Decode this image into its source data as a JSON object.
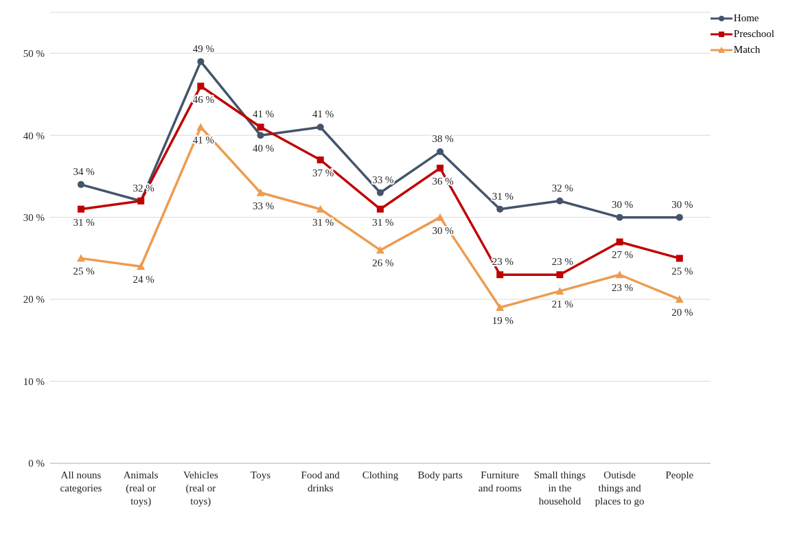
{
  "chart_data": {
    "type": "line",
    "categories": [
      "All nouns categories",
      "Animals (real or toys)",
      "Vehicles (real or toys)",
      "Toys",
      "Food and drinks",
      "Clothing",
      "Body parts",
      "Furniture and rooms",
      "Small things in the household",
      "Outisde things and places to go",
      "People"
    ],
    "series": [
      {
        "name": "Home",
        "color": "#44546a",
        "marker": "circle",
        "values": [
          34,
          32,
          49,
          40,
          41,
          33,
          38,
          31,
          32,
          30,
          30
        ],
        "value_labels": [
          "34 %",
          "32 %",
          "49 %",
          "40 %",
          "41 %",
          "33 %",
          "38 %",
          "31 %",
          "32 %",
          "30 %",
          "30 %"
        ]
      },
      {
        "name": "Preschool",
        "color": "#c00000",
        "marker": "square",
        "values": [
          31,
          32,
          46,
          41,
          37,
          31,
          36,
          23,
          23,
          27,
          25
        ],
        "value_labels": [
          "31 %",
          null,
          "46 %",
          "41 %",
          "37 %",
          "31 %",
          "36 %",
          "23 %",
          "23 %",
          "27 %",
          "25 %"
        ]
      },
      {
        "name": "Match",
        "color": "#ed9b4f",
        "marker": "triangle",
        "values": [
          25,
          24,
          41,
          33,
          31,
          26,
          30,
          19,
          21,
          23,
          20
        ],
        "value_labels": [
          "25 %",
          "24 %",
          "41 %",
          "33 %",
          "31 %",
          "26 %",
          "30 %",
          "19 %",
          "21 %",
          "23 %",
          "20 %"
        ]
      }
    ],
    "ylim": [
      0,
      55
    ],
    "yticks": [
      {
        "value": 0,
        "label": "0 %"
      },
      {
        "value": 10,
        "label": "10 %"
      },
      {
        "value": 20,
        "label": "20 %"
      },
      {
        "value": 30,
        "label": "30 %"
      },
      {
        "value": 40,
        "label": "40 %"
      },
      {
        "value": 50,
        "label": "50 %"
      }
    ],
    "grid": "y",
    "legend": "top right",
    "line_style": "solid"
  }
}
